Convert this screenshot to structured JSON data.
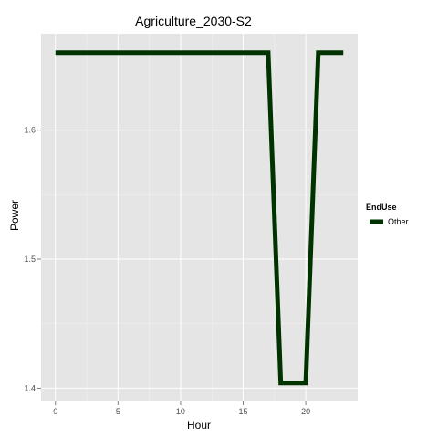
{
  "chart_data": {
    "type": "line",
    "title": "Agriculture_2030-S2",
    "xlabel": "Hour",
    "ylabel": "Power",
    "xlim": [
      -1.15,
      24.15
    ],
    "ylim": [
      1.3897,
      1.6747
    ],
    "x_ticks": [
      0,
      5,
      10,
      15,
      20
    ],
    "y_ticks": [
      1.4,
      1.5,
      1.6
    ],
    "x_tick_labels": [
      "0",
      "5",
      "10",
      "15",
      "20"
    ],
    "y_tick_labels": [
      "1.4",
      "1.5",
      "1.6"
    ],
    "grid": true,
    "legend": {
      "title": "EndUse",
      "position": "right"
    },
    "series": [
      {
        "name": "Other",
        "color": "#003300",
        "x": [
          0,
          1,
          2,
          3,
          4,
          5,
          6,
          7,
          8,
          9,
          10,
          11,
          12,
          13,
          14,
          15,
          16,
          17,
          18,
          19,
          20,
          21,
          22,
          23
        ],
        "y": [
          1.66,
          1.66,
          1.66,
          1.66,
          1.66,
          1.66,
          1.66,
          1.66,
          1.66,
          1.66,
          1.66,
          1.66,
          1.66,
          1.66,
          1.66,
          1.66,
          1.66,
          1.66,
          1.404,
          1.404,
          1.404,
          1.66,
          1.66,
          1.66
        ]
      }
    ]
  }
}
